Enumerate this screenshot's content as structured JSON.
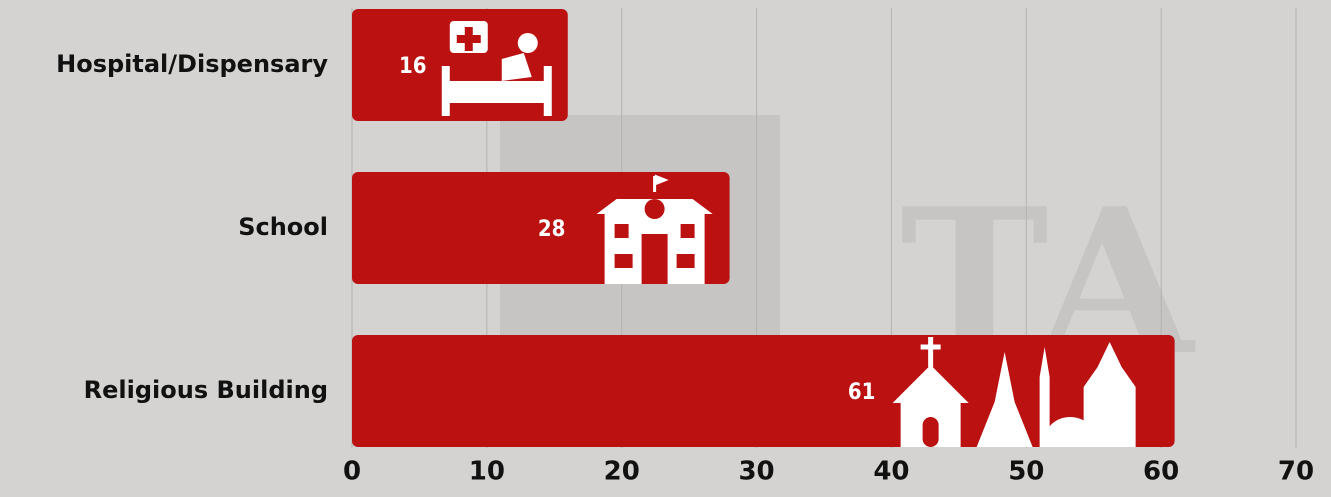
{
  "chart_data": {
    "type": "hbar",
    "categories": [
      "Hospital/Dispensary",
      "School",
      "Religious Building"
    ],
    "values": [
      16,
      28,
      61
    ],
    "color": "#bb1111",
    "xlim": [
      0,
      70
    ],
    "xticks": [
      0,
      10,
      20,
      30,
      40,
      50,
      60,
      70
    ],
    "grid": true
  }
}
